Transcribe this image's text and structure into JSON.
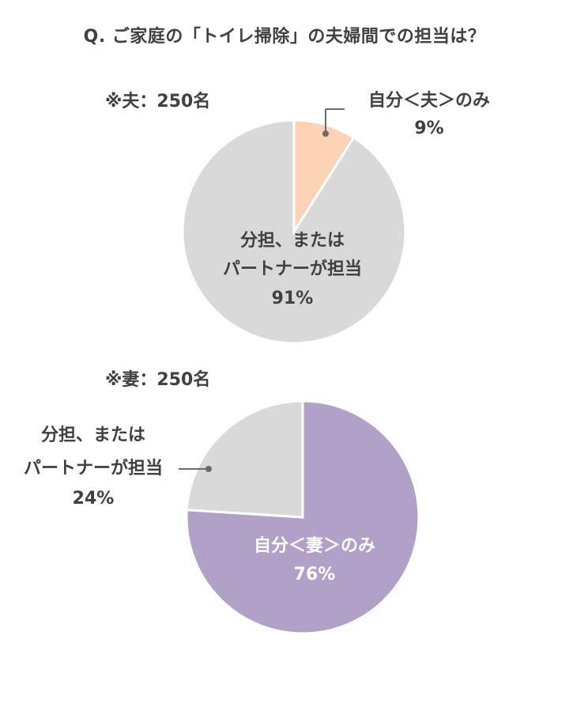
{
  "title": "Q. ご家庭の「トイレ掃除」の夫婦間での担当は？",
  "colors": {
    "text": "#404040",
    "gray_slice": "#d9d9d9",
    "peach_slice": "#fbd2b4",
    "purple_slice": "#b1a0c7",
    "white_label": "#ffffff",
    "leader": "#6b6b6b"
  },
  "chart_data": [
    {
      "type": "pie",
      "subtitle": "※夫：250名",
      "slices": [
        {
          "label": "自分＜夫＞のみ",
          "value": 9,
          "value_label": "9%",
          "color": "#fbd2b4"
        },
        {
          "label_lines": [
            "分担、または",
            "パートナーが担当"
          ],
          "value": 91,
          "value_label": "91%",
          "color": "#d9d9d9"
        }
      ]
    },
    {
      "type": "pie",
      "subtitle": "※妻：250名",
      "slices": [
        {
          "label": "自分＜妻＞のみ",
          "value": 76,
          "value_label": "76%",
          "color": "#b1a0c7"
        },
        {
          "label_lines": [
            "分担、または",
            "パートナーが担当"
          ],
          "value": 24,
          "value_label": "24%",
          "color": "#d9d9d9"
        }
      ]
    }
  ]
}
